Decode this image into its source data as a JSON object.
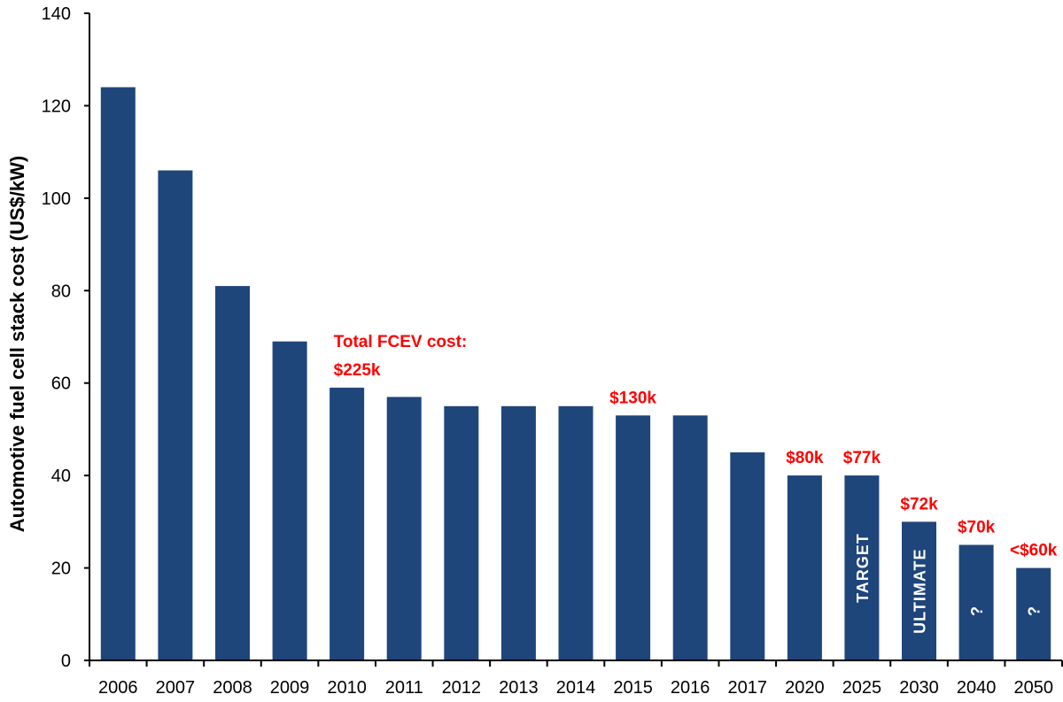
{
  "chart_data": {
    "type": "bar",
    "title": "",
    "xlabel": "",
    "ylabel": "Automotive fuel cell stack cost (US$/kW)",
    "ylim": [
      0,
      140
    ],
    "yticks": [
      0,
      20,
      40,
      60,
      80,
      100,
      120,
      140
    ],
    "grid": false,
    "legend": "none",
    "colors": {
      "bar": "#1f467b",
      "annotation": "#ff0000",
      "bar_text": "#ffffff",
      "axis": "#000000"
    },
    "categories": [
      "2006",
      "2007",
      "2008",
      "2009",
      "2010",
      "2011",
      "2012",
      "2013",
      "2014",
      "2015",
      "2016",
      "2017",
      "2020",
      "2025",
      "2030",
      "2040",
      "2050"
    ],
    "values": [
      124,
      106,
      81,
      69,
      59,
      57,
      55,
      55,
      55,
      53,
      53,
      45,
      40,
      40,
      30,
      25,
      20
    ],
    "annotations": [
      {
        "category": "2010",
        "lines": [
          "Total FCEV cost:",
          "$225k"
        ],
        "align": "start"
      },
      {
        "category": "2015",
        "lines": [
          "$130k"
        ],
        "align": "middle"
      },
      {
        "category": "2020",
        "lines": [
          "$80k"
        ],
        "align": "middle"
      },
      {
        "category": "2025",
        "lines": [
          "$77k"
        ],
        "align": "middle"
      },
      {
        "category": "2030",
        "lines": [
          "$72k"
        ],
        "align": "middle"
      },
      {
        "category": "2040",
        "lines": [
          "$70k"
        ],
        "align": "middle"
      },
      {
        "category": "2050",
        "lines": [
          "<$60k"
        ],
        "align": "middle"
      }
    ],
    "bar_labels": [
      {
        "category": "2025",
        "text": "TARGET"
      },
      {
        "category": "2030",
        "text": "ULTIMATE"
      },
      {
        "category": "2040",
        "text": "?"
      },
      {
        "category": "2050",
        "text": "?"
      }
    ]
  }
}
